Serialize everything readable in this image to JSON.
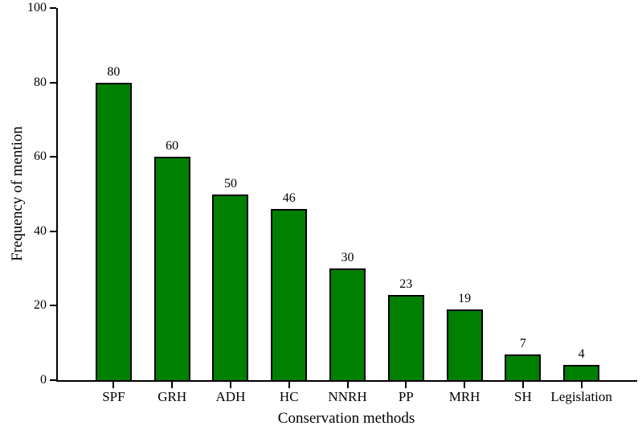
{
  "chart_data": {
    "type": "bar",
    "title": "",
    "categories": [
      "SPF",
      "GRH",
      "ADH",
      "HC",
      "NNRH",
      "PP",
      "MRH",
      "SH",
      "Legislation"
    ],
    "values": [
      80,
      60,
      50,
      46,
      30,
      23,
      19,
      7,
      4
    ],
    "value_labels": [
      "80",
      "60",
      "50",
      "46",
      "30",
      "23",
      "19",
      "7",
      "4"
    ],
    "xlabel": "Conservation methods",
    "ylabel": "Frequency of mention",
    "ylim": [
      0,
      100
    ],
    "yticks": [
      0,
      20,
      40,
      60,
      80,
      100
    ],
    "grid": false,
    "legend": "none",
    "bar_fill_color": "#008000",
    "bar_border_color": "#000000",
    "axis_color": "#000000",
    "text_color": "#000000",
    "background_color": "#ffffff"
  }
}
